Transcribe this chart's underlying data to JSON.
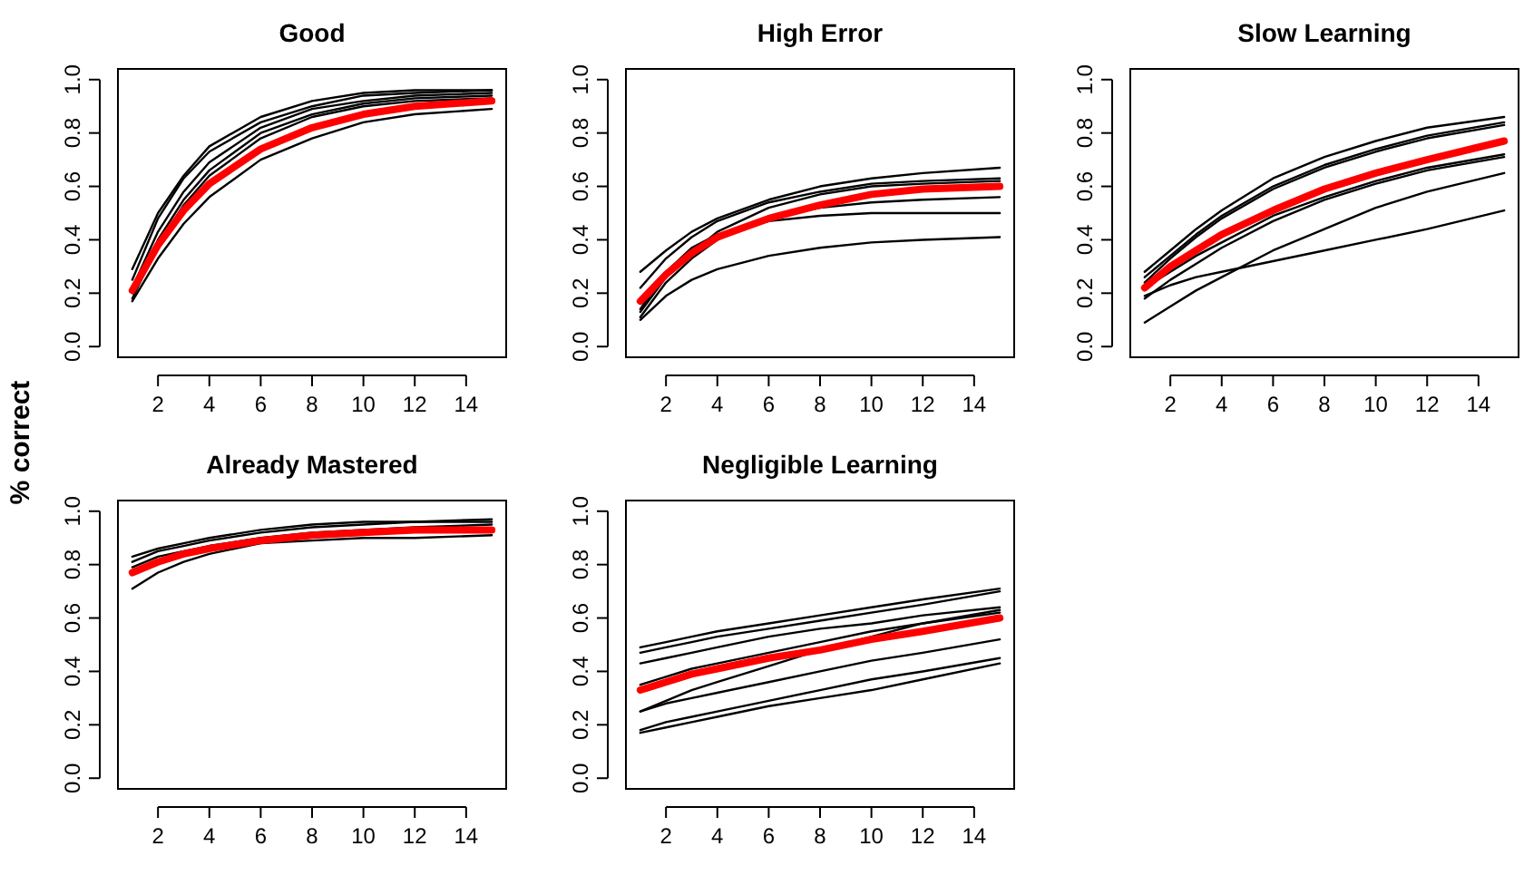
{
  "chart_data": [
    {
      "type": "line",
      "title": "Good",
      "ylabel": "% correct",
      "x": [
        1,
        2,
        3,
        4,
        6,
        8,
        10,
        12,
        15
      ],
      "xlim": [
        0.44,
        15.56
      ],
      "ylim": [
        -0.04,
        1.04
      ],
      "xticks": [
        2,
        4,
        6,
        8,
        10,
        12,
        14
      ],
      "yticks": [
        {
          "value": 0,
          "label": "0.0"
        },
        {
          "value": 0.2,
          "label": "0.2"
        },
        {
          "value": 0.4,
          "label": "0.4"
        },
        {
          "value": 0.6,
          "label": "0.6"
        },
        {
          "value": 0.8,
          "label": "0.8"
        },
        {
          "value": 1,
          "label": "1.0"
        }
      ],
      "grid": false,
      "series": [
        {
          "color": "#000000",
          "values": [
            0.29,
            0.5,
            0.64,
            0.75,
            0.86,
            0.92,
            0.95,
            0.96,
            0.96
          ]
        },
        {
          "color": "#000000",
          "values": [
            0.25,
            0.48,
            0.63,
            0.73,
            0.84,
            0.9,
            0.94,
            0.95,
            0.96
          ]
        },
        {
          "color": "#000000",
          "values": [
            0.22,
            0.43,
            0.58,
            0.69,
            0.82,
            0.89,
            0.92,
            0.94,
            0.95
          ]
        },
        {
          "color": "#000000",
          "values": [
            0.2,
            0.4,
            0.55,
            0.66,
            0.8,
            0.87,
            0.91,
            0.93,
            0.94
          ]
        },
        {
          "color": "#000000",
          "values": [
            0.18,
            0.38,
            0.53,
            0.64,
            0.78,
            0.86,
            0.9,
            0.92,
            0.93
          ]
        },
        {
          "color": "#000000",
          "values": [
            0.17,
            0.33,
            0.46,
            0.56,
            0.7,
            0.78,
            0.84,
            0.87,
            0.89
          ]
        },
        {
          "color": "#ff0000",
          "values": [
            0.21,
            0.38,
            0.51,
            0.61,
            0.74,
            0.82,
            0.87,
            0.9,
            0.92
          ]
        }
      ]
    },
    {
      "type": "line",
      "title": "High Error",
      "x": [
        1,
        2,
        3,
        4,
        6,
        8,
        10,
        12,
        15
      ],
      "xlim": [
        0.44,
        15.56
      ],
      "ylim": [
        -0.04,
        1.04
      ],
      "xticks": [
        2,
        4,
        6,
        8,
        10,
        12,
        14
      ],
      "yticks": [
        {
          "value": 0,
          "label": "0.0"
        },
        {
          "value": 0.2,
          "label": "0.2"
        },
        {
          "value": 0.4,
          "label": "0.4"
        },
        {
          "value": 0.6,
          "label": "0.6"
        },
        {
          "value": 0.8,
          "label": "0.8"
        },
        {
          "value": 1,
          "label": "1.0"
        }
      ],
      "grid": false,
      "series": [
        {
          "color": "#000000",
          "values": [
            0.28,
            0.36,
            0.43,
            0.48,
            0.55,
            0.6,
            0.63,
            0.65,
            0.67
          ]
        },
        {
          "color": "#000000",
          "values": [
            0.22,
            0.33,
            0.41,
            0.47,
            0.54,
            0.58,
            0.61,
            0.62,
            0.63
          ]
        },
        {
          "color": "#000000",
          "values": [
            0.13,
            0.26,
            0.35,
            0.43,
            0.52,
            0.57,
            0.6,
            0.61,
            0.62
          ]
        },
        {
          "color": "#000000",
          "values": [
            0.11,
            0.24,
            0.33,
            0.4,
            0.48,
            0.52,
            0.54,
            0.55,
            0.56
          ]
        },
        {
          "color": "#000000",
          "values": [
            0.14,
            0.28,
            0.37,
            0.42,
            0.47,
            0.49,
            0.5,
            0.5,
            0.5
          ]
        },
        {
          "color": "#000000",
          "values": [
            0.1,
            0.19,
            0.25,
            0.29,
            0.34,
            0.37,
            0.39,
            0.4,
            0.41
          ]
        },
        {
          "color": "#ff0000",
          "values": [
            0.17,
            0.27,
            0.35,
            0.41,
            0.48,
            0.53,
            0.57,
            0.59,
            0.6
          ]
        }
      ]
    },
    {
      "type": "line",
      "title": "Slow Learning",
      "x": [
        1,
        2,
        3,
        4,
        6,
        8,
        10,
        12,
        15
      ],
      "xlim": [
        0.44,
        15.56
      ],
      "ylim": [
        -0.04,
        1.04
      ],
      "xticks": [
        2,
        4,
        6,
        8,
        10,
        12,
        14
      ],
      "yticks": [
        {
          "value": 0,
          "label": "0.0"
        },
        {
          "value": 0.2,
          "label": "0.2"
        },
        {
          "value": 0.4,
          "label": "0.4"
        },
        {
          "value": 0.6,
          "label": "0.6"
        },
        {
          "value": 0.8,
          "label": "0.8"
        },
        {
          "value": 1,
          "label": "1.0"
        }
      ],
      "grid": false,
      "series": [
        {
          "color": "#000000",
          "values": [
            0.28,
            0.36,
            0.44,
            0.51,
            0.63,
            0.71,
            0.77,
            0.82,
            0.86
          ]
        },
        {
          "color": "#000000",
          "values": [
            0.26,
            0.34,
            0.42,
            0.49,
            0.6,
            0.68,
            0.74,
            0.79,
            0.84
          ]
        },
        {
          "color": "#000000",
          "values": [
            0.24,
            0.33,
            0.41,
            0.48,
            0.59,
            0.67,
            0.73,
            0.78,
            0.83
          ]
        },
        {
          "color": "#000000",
          "values": [
            0.22,
            0.28,
            0.34,
            0.39,
            0.49,
            0.56,
            0.62,
            0.67,
            0.72
          ]
        },
        {
          "color": "#000000",
          "values": [
            0.18,
            0.25,
            0.31,
            0.37,
            0.47,
            0.55,
            0.61,
            0.66,
            0.71
          ]
        },
        {
          "color": "#000000",
          "values": [
            0.09,
            0.15,
            0.21,
            0.26,
            0.36,
            0.44,
            0.52,
            0.58,
            0.65
          ]
        },
        {
          "color": "#000000",
          "values": [
            0.19,
            0.23,
            0.26,
            0.28,
            0.32,
            0.36,
            0.4,
            0.44,
            0.51
          ]
        },
        {
          "color": "#ff0000",
          "values": [
            0.22,
            0.3,
            0.36,
            0.42,
            0.51,
            0.59,
            0.65,
            0.7,
            0.77
          ]
        }
      ]
    },
    {
      "type": "line",
      "title": "Already Mastered",
      "x": [
        1,
        2,
        3,
        4,
        6,
        8,
        10,
        12,
        15
      ],
      "xlim": [
        0.44,
        15.56
      ],
      "ylim": [
        -0.04,
        1.04
      ],
      "xticks": [
        2,
        4,
        6,
        8,
        10,
        12,
        14
      ],
      "yticks": [
        {
          "value": 0,
          "label": "0.0"
        },
        {
          "value": 0.2,
          "label": "0.2"
        },
        {
          "value": 0.4,
          "label": "0.4"
        },
        {
          "value": 0.6,
          "label": "0.6"
        },
        {
          "value": 0.8,
          "label": "0.8"
        },
        {
          "value": 1,
          "label": "1.0"
        }
      ],
      "grid": false,
      "series": [
        {
          "color": "#000000",
          "values": [
            0.83,
            0.86,
            0.88,
            0.9,
            0.93,
            0.95,
            0.96,
            0.96,
            0.97
          ]
        },
        {
          "color": "#000000",
          "values": [
            0.81,
            0.85,
            0.87,
            0.89,
            0.92,
            0.94,
            0.95,
            0.96,
            0.96
          ]
        },
        {
          "color": "#000000",
          "values": [
            0.79,
            0.83,
            0.85,
            0.87,
            0.9,
            0.92,
            0.93,
            0.94,
            0.95
          ]
        },
        {
          "color": "#000000",
          "values": [
            0.71,
            0.77,
            0.81,
            0.84,
            0.88,
            0.89,
            0.9,
            0.9,
            0.91
          ]
        },
        {
          "color": "#ff0000",
          "values": [
            0.77,
            0.81,
            0.84,
            0.86,
            0.89,
            0.91,
            0.92,
            0.93,
            0.93
          ]
        }
      ]
    },
    {
      "type": "line",
      "title": "Negligible Learning",
      "x": [
        1,
        2,
        3,
        4,
        6,
        8,
        10,
        12,
        15
      ],
      "xlim": [
        0.44,
        15.56
      ],
      "ylim": [
        -0.04,
        1.04
      ],
      "xticks": [
        2,
        4,
        6,
        8,
        10,
        12,
        14
      ],
      "yticks": [
        {
          "value": 0,
          "label": "0.0"
        },
        {
          "value": 0.2,
          "label": "0.2"
        },
        {
          "value": 0.4,
          "label": "0.4"
        },
        {
          "value": 0.6,
          "label": "0.6"
        },
        {
          "value": 0.8,
          "label": "0.8"
        },
        {
          "value": 1,
          "label": "1.0"
        }
      ],
      "grid": false,
      "series": [
        {
          "color": "#000000",
          "values": [
            0.49,
            0.51,
            0.53,
            0.55,
            0.58,
            0.61,
            0.64,
            0.67,
            0.71
          ]
        },
        {
          "color": "#000000",
          "values": [
            0.47,
            0.49,
            0.51,
            0.53,
            0.56,
            0.59,
            0.62,
            0.65,
            0.7
          ]
        },
        {
          "color": "#000000",
          "values": [
            0.43,
            0.45,
            0.47,
            0.49,
            0.53,
            0.56,
            0.58,
            0.61,
            0.64
          ]
        },
        {
          "color": "#000000",
          "values": [
            0.35,
            0.38,
            0.41,
            0.43,
            0.47,
            0.51,
            0.55,
            0.58,
            0.63
          ]
        },
        {
          "color": "#000000",
          "values": [
            0.25,
            0.29,
            0.33,
            0.36,
            0.42,
            0.48,
            0.53,
            0.58,
            0.62
          ]
        },
        {
          "color": "#000000",
          "values": [
            0.25,
            0.28,
            0.3,
            0.32,
            0.36,
            0.4,
            0.44,
            0.47,
            0.52
          ]
        },
        {
          "color": "#000000",
          "values": [
            0.18,
            0.21,
            0.23,
            0.25,
            0.29,
            0.33,
            0.37,
            0.4,
            0.45
          ]
        },
        {
          "color": "#000000",
          "values": [
            0.17,
            0.19,
            0.21,
            0.23,
            0.27,
            0.3,
            0.33,
            0.37,
            0.43
          ]
        },
        {
          "color": "#ff0000",
          "values": [
            0.33,
            0.36,
            0.39,
            0.41,
            0.45,
            0.48,
            0.52,
            0.55,
            0.6
          ]
        }
      ]
    }
  ]
}
